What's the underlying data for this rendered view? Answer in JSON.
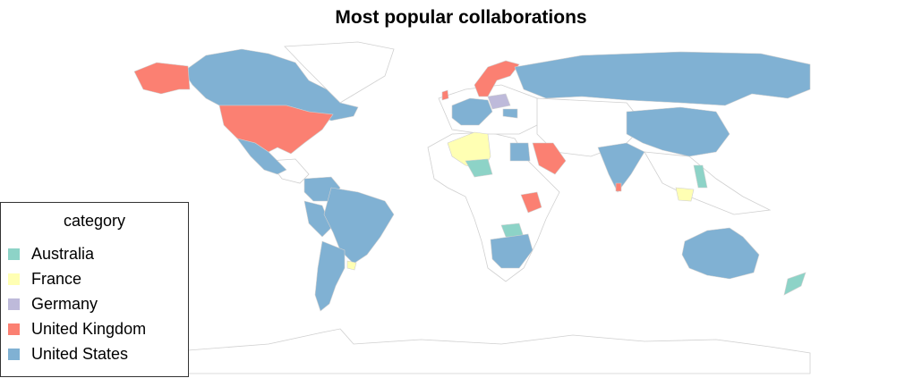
{
  "title": "Most popular collaborations",
  "legend": {
    "title": "category",
    "items": [
      {
        "label": "Australia",
        "color": "#8dd3c7"
      },
      {
        "label": "France",
        "color": "#ffffb3"
      },
      {
        "label": "Germany",
        "color": "#bebada"
      },
      {
        "label": "United Kingdom",
        "color": "#fb8072"
      },
      {
        "label": "United States",
        "color": "#80b1d3"
      }
    ]
  },
  "colors": {
    "unassigned": "#ffffff",
    "border": "#d0d0d0"
  },
  "chart_data": {
    "type": "choropleth",
    "category_field": "category",
    "regions": [
      {
        "name": "United States",
        "category": "United Kingdom"
      },
      {
        "name": "Alaska",
        "category": "United Kingdom"
      },
      {
        "name": "Canada",
        "category": "United States"
      },
      {
        "name": "Mexico",
        "category": "United States"
      },
      {
        "name": "Brazil",
        "category": "United States"
      },
      {
        "name": "Argentina",
        "category": "United States"
      },
      {
        "name": "Colombia",
        "category": "United States"
      },
      {
        "name": "Peru",
        "category": "United States"
      },
      {
        "name": "Uruguay",
        "category": "France"
      },
      {
        "name": "Russia",
        "category": "United States"
      },
      {
        "name": "China",
        "category": "United States"
      },
      {
        "name": "India",
        "category": "United States"
      },
      {
        "name": "Australia",
        "category": "United States"
      },
      {
        "name": "New Zealand",
        "category": "Australia"
      },
      {
        "name": "Saudi Arabia",
        "category": "United Kingdom"
      },
      {
        "name": "Kenya",
        "category": "United Kingdom"
      },
      {
        "name": "Sri Lanka",
        "category": "United Kingdom"
      },
      {
        "name": "Norway/Sweden",
        "category": "United Kingdom"
      },
      {
        "name": "Ireland",
        "category": "United Kingdom"
      },
      {
        "name": "Algeria",
        "category": "France"
      },
      {
        "name": "Niger",
        "category": "Australia"
      },
      {
        "name": "Zambia",
        "category": "Australia"
      },
      {
        "name": "Philippines",
        "category": "Australia"
      },
      {
        "name": "Poland",
        "category": "Germany"
      },
      {
        "name": "Indonesia (Borneo)",
        "category": "France"
      },
      {
        "name": "Mozambique/South Africa",
        "category": "United States"
      },
      {
        "name": "Egypt",
        "category": "United States"
      }
    ]
  }
}
